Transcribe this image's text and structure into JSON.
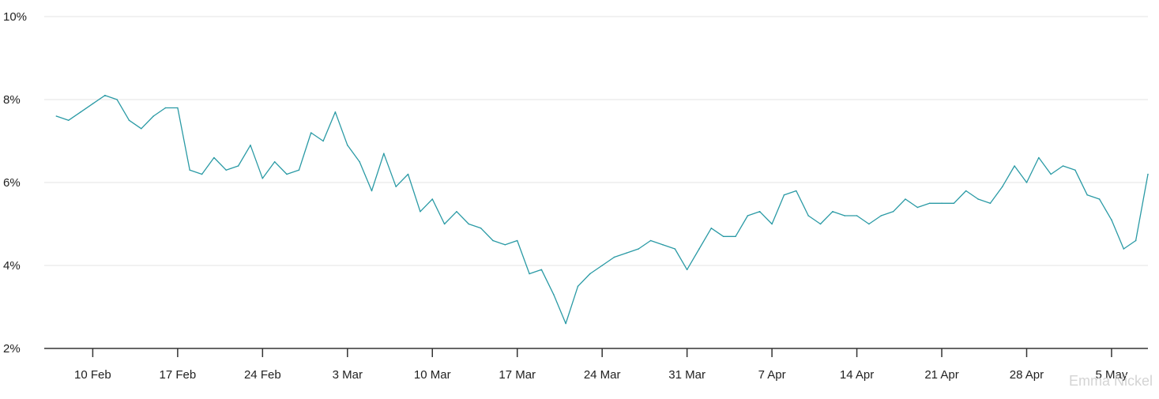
{
  "chart_data": {
    "type": "line",
    "title": "",
    "xlabel": "",
    "ylabel": "",
    "ylim": [
      2,
      10
    ],
    "y_ticks": [
      "2%",
      "4%",
      "6%",
      "8%",
      "10%"
    ],
    "y_tick_values": [
      2,
      4,
      6,
      8,
      10
    ],
    "x_range": [
      "2025-02-06",
      "2025-05-08"
    ],
    "x_ticks": [
      "10 Feb",
      "17 Feb",
      "24 Feb",
      "3 Mar",
      "10 Mar",
      "17 Mar",
      "24 Mar",
      "31 Mar",
      "7 Apr",
      "14 Apr",
      "21 Apr",
      "28 Apr",
      "5 May"
    ],
    "x_tick_dates": [
      "2025-02-10",
      "2025-02-17",
      "2025-02-24",
      "2025-03-03",
      "2025-03-10",
      "2025-03-17",
      "2025-03-24",
      "2025-03-31",
      "2025-04-07",
      "2025-04-14",
      "2025-04-21",
      "2025-04-28",
      "2025-05-05"
    ],
    "grid": true,
    "series": [
      {
        "color": "#2a9aa5",
        "x": [
          "2025-02-07",
          "2025-02-08",
          "2025-02-09",
          "2025-02-10",
          "2025-02-11",
          "2025-02-12",
          "2025-02-13",
          "2025-02-14",
          "2025-02-15",
          "2025-02-16",
          "2025-02-17",
          "2025-02-18",
          "2025-02-19",
          "2025-02-20",
          "2025-02-21",
          "2025-02-22",
          "2025-02-23",
          "2025-02-24",
          "2025-02-25",
          "2025-02-26",
          "2025-02-27",
          "2025-02-28",
          "2025-03-01",
          "2025-03-02",
          "2025-03-03",
          "2025-03-04",
          "2025-03-05",
          "2025-03-06",
          "2025-03-07",
          "2025-03-08",
          "2025-03-09",
          "2025-03-10",
          "2025-03-11",
          "2025-03-12",
          "2025-03-13",
          "2025-03-14",
          "2025-03-15",
          "2025-03-16",
          "2025-03-17",
          "2025-03-18",
          "2025-03-19",
          "2025-03-20",
          "2025-03-21",
          "2025-03-22",
          "2025-03-23",
          "2025-03-24",
          "2025-03-25",
          "2025-03-26",
          "2025-03-27",
          "2025-03-28",
          "2025-03-29",
          "2025-03-30",
          "2025-03-31",
          "2025-04-01",
          "2025-04-02",
          "2025-04-03",
          "2025-04-04",
          "2025-04-05",
          "2025-04-06",
          "2025-04-07",
          "2025-04-08",
          "2025-04-09",
          "2025-04-10",
          "2025-04-11",
          "2025-04-12",
          "2025-04-13",
          "2025-04-14",
          "2025-04-15",
          "2025-04-16",
          "2025-04-17",
          "2025-04-18",
          "2025-04-19",
          "2025-04-20",
          "2025-04-21",
          "2025-04-22",
          "2025-04-23",
          "2025-04-24",
          "2025-04-25",
          "2025-04-26",
          "2025-04-27",
          "2025-04-28",
          "2025-04-29",
          "2025-04-30",
          "2025-05-01",
          "2025-05-02",
          "2025-05-03",
          "2025-05-04",
          "2025-05-05",
          "2025-05-06",
          "2025-05-07",
          "2025-05-08"
        ],
        "values": [
          7.6,
          7.5,
          7.7,
          7.9,
          8.1,
          8.0,
          7.5,
          7.3,
          7.6,
          7.8,
          7.8,
          6.3,
          6.2,
          6.6,
          6.3,
          6.4,
          6.9,
          6.1,
          6.5,
          6.2,
          6.3,
          7.2,
          7.0,
          7.7,
          6.9,
          6.5,
          5.8,
          6.7,
          5.9,
          6.2,
          5.3,
          5.6,
          5.0,
          5.3,
          5.0,
          4.9,
          4.6,
          4.5,
          4.6,
          3.8,
          3.9,
          3.3,
          2.6,
          3.5,
          3.8,
          4.0,
          4.2,
          4.3,
          4.4,
          4.6,
          4.5,
          4.4,
          3.9,
          4.4,
          4.9,
          4.7,
          4.7,
          5.2,
          5.3,
          5.0,
          5.7,
          5.8,
          5.2,
          5.0,
          5.3,
          5.2,
          5.2,
          5.0,
          5.2,
          5.3,
          5.6,
          5.4,
          5.5,
          5.5,
          5.5,
          5.8,
          5.6,
          5.5,
          5.9,
          6.4,
          6.0,
          6.6,
          6.2,
          6.4,
          6.3,
          5.7,
          5.6,
          5.1,
          4.4,
          4.6,
          6.2
        ]
      }
    ]
  },
  "watermark": "Emma Nickel"
}
